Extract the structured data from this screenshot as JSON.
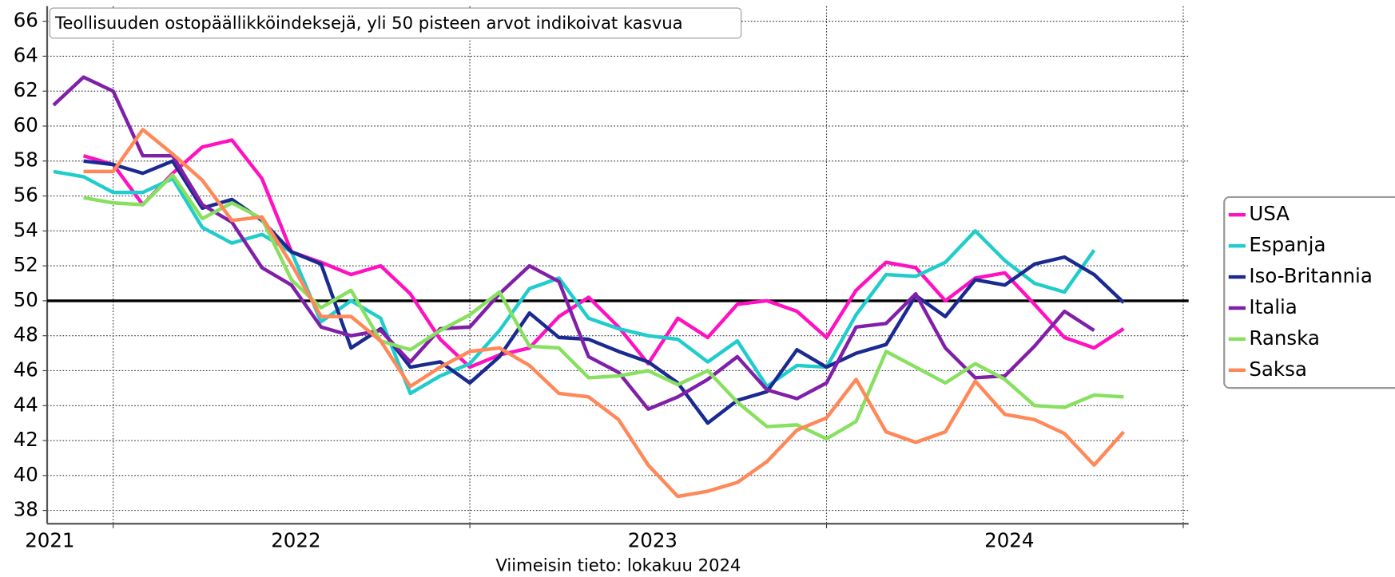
{
  "chart_data": {
    "type": "line",
    "title": "Teollisuuden ostopäällikköindeksejä, yli 50 pisteen arvot indikoivat kasvua",
    "footer": "Viimeisin tieto: lokakuu 2024",
    "x": [
      2021.833,
      2021.917,
      2022.0,
      2022.083,
      2022.167,
      2022.25,
      2022.333,
      2022.417,
      2022.5,
      2022.583,
      2022.667,
      2022.75,
      2022.833,
      2022.917,
      2023.0,
      2023.083,
      2023.167,
      2023.25,
      2023.333,
      2023.417,
      2023.5,
      2023.583,
      2023.667,
      2023.75,
      2023.833,
      2023.917,
      2024.0,
      2024.083,
      2024.167,
      2024.25,
      2024.333,
      2024.417,
      2024.5,
      2024.583,
      2024.667,
      2024.75,
      2024.833
    ],
    "series": [
      {
        "name": "USA",
        "color": "#ff10c0",
        "values": [
          null,
          58.3,
          57.8,
          55.5,
          57.3,
          58.8,
          59.2,
          57.0,
          52.8,
          52.2,
          51.5,
          52.0,
          50.4,
          47.8,
          46.2,
          46.9,
          47.3,
          49.1,
          50.2,
          48.5,
          46.4,
          49.0,
          47.9,
          49.8,
          50.0,
          49.4,
          47.9,
          50.6,
          52.2,
          51.9,
          50.0,
          51.3,
          51.6,
          49.8,
          47.9,
          47.3,
          48.4
        ]
      },
      {
        "name": "Espanja",
        "color": "#20cccc",
        "values": [
          57.4,
          57.1,
          56.2,
          56.2,
          57.0,
          54.2,
          53.3,
          53.8,
          52.8,
          48.8,
          50.0,
          49.0,
          44.7,
          45.7,
          46.4,
          48.3,
          50.7,
          51.3,
          49.0,
          48.4,
          48.0,
          47.8,
          46.5,
          47.7,
          45.1,
          46.3,
          46.2,
          49.2,
          51.5,
          51.4,
          52.2,
          54.0,
          52.3,
          51.0,
          50.5,
          52.9,
          null
        ]
      },
      {
        "name": "Iso-Britannia",
        "color": "#1a2a90",
        "values": [
          null,
          58.0,
          57.8,
          57.3,
          58.0,
          55.3,
          55.8,
          54.6,
          52.8,
          52.1,
          47.3,
          48.4,
          46.2,
          46.5,
          45.3,
          46.8,
          49.3,
          47.9,
          47.8,
          47.1,
          46.5,
          45.3,
          43.0,
          44.3,
          44.8,
          47.2,
          46.2,
          47.0,
          47.5,
          50.3,
          49.1,
          51.2,
          50.9,
          52.1,
          52.5,
          51.5,
          49.9
        ]
      },
      {
        "name": "Italia",
        "color": "#8020a8",
        "values": [
          61.2,
          62.8,
          62.0,
          58.3,
          58.3,
          55.5,
          54.5,
          51.9,
          50.9,
          48.5,
          48.0,
          48.3,
          46.5,
          48.4,
          48.5,
          50.4,
          52.0,
          51.1,
          46.8,
          45.9,
          43.8,
          44.5,
          45.5,
          46.8,
          44.9,
          44.4,
          45.3,
          48.5,
          48.7,
          50.4,
          47.3,
          45.6,
          45.7,
          47.4,
          49.4,
          48.3,
          null
        ]
      },
      {
        "name": "Ranska",
        "color": "#88e060",
        "values": [
          null,
          55.9,
          55.6,
          55.5,
          57.2,
          54.7,
          55.6,
          54.7,
          51.2,
          49.6,
          50.6,
          47.7,
          47.2,
          48.3,
          49.2,
          50.5,
          47.4,
          47.3,
          45.6,
          45.7,
          46.0,
          45.2,
          46.0,
          44.2,
          42.8,
          42.9,
          42.1,
          43.1,
          47.1,
          46.2,
          45.3,
          46.4,
          45.5,
          44.0,
          43.9,
          44.6,
          44.5
        ]
      },
      {
        "name": "Saksa",
        "color": "#ff8858",
        "values": [
          null,
          57.4,
          57.4,
          59.8,
          58.4,
          56.9,
          54.6,
          54.8,
          52.1,
          49.1,
          49.1,
          47.7,
          45.1,
          46.2,
          47.1,
          47.3,
          46.3,
          44.7,
          44.5,
          43.2,
          40.6,
          38.8,
          39.1,
          39.6,
          40.8,
          42.6,
          43.3,
          45.5,
          42.5,
          41.9,
          42.5,
          45.4,
          43.5,
          43.2,
          42.4,
          40.6,
          42.5
        ]
      }
    ],
    "xlim": [
      2021.815,
      2025.015
    ],
    "xticks": [
      2022,
      2023,
      2024,
      2025
    ],
    "xlabels": [
      {
        "value": 2021.81,
        "label": "2021"
      },
      {
        "value": 2022.5,
        "label": "2022"
      },
      {
        "value": 2023.5,
        "label": "2023"
      },
      {
        "value": 2024.5,
        "label": "2024"
      }
    ],
    "ylim": [
      37.24,
      66.86
    ],
    "yticks": [
      38,
      40,
      42,
      44,
      46,
      48,
      50,
      52,
      54,
      56,
      58,
      60,
      62,
      64,
      66
    ],
    "reference_line": 50,
    "grid": true,
    "legend": "right"
  }
}
